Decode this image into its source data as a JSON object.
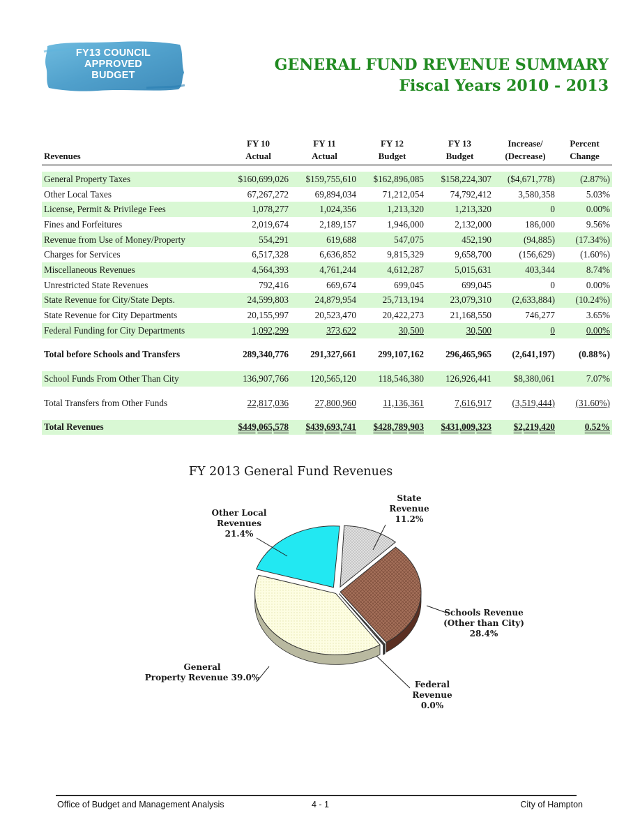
{
  "badge": {
    "line1": "FY13 COUNCIL",
    "line2": "APPROVED",
    "line3": "BUDGET"
  },
  "title": {
    "line1": "GENERAL FUND REVENUE SUMMARY",
    "line2": "Fiscal Years 2010 - 2013"
  },
  "colors": {
    "title_green": "#218a21",
    "row_green": "#d9f8d4",
    "badge_blue": "#3d96c6"
  },
  "table": {
    "header_top": [
      "FY 10",
      "FY 11",
      "FY 12",
      "FY 13",
      "Increase/",
      "Percent"
    ],
    "header_bottom": [
      "Actual",
      "Actual",
      "Budget",
      "Budget",
      "(Decrease)",
      "Change"
    ],
    "label_header": "Revenues",
    "rows": [
      {
        "label": "General Property Taxes",
        "fy10": "$160,699,026",
        "fy11": "$159,755,610",
        "fy12": "$162,896,085",
        "fy13": "$158,224,307",
        "change": "($4,671,778)",
        "pct": "(2.87%)"
      },
      {
        "label": "Other Local Taxes",
        "fy10": "67,267,272",
        "fy11": "69,894,034",
        "fy12": "71,212,054",
        "fy13": "74,792,412",
        "change": "3,580,358",
        "pct": "5.03%"
      },
      {
        "label": "License, Permit & Privilege Fees",
        "fy10": "1,078,277",
        "fy11": "1,024,356",
        "fy12": "1,213,320",
        "fy13": "1,213,320",
        "change": "0",
        "pct": "0.00%"
      },
      {
        "label": "Fines and Forfeitures",
        "fy10": "2,019,674",
        "fy11": "2,189,157",
        "fy12": "1,946,000",
        "fy13": "2,132,000",
        "change": "186,000",
        "pct": "9.56%"
      },
      {
        "label": "Revenue from Use of Money/Property",
        "fy10": "554,291",
        "fy11": "619,688",
        "fy12": "547,075",
        "fy13": "452,190",
        "change": "(94,885)",
        "pct": "(17.34%)"
      },
      {
        "label": "Charges for Services",
        "fy10": "6,517,328",
        "fy11": "6,636,852",
        "fy12": "9,815,329",
        "fy13": "9,658,700",
        "change": "(156,629)",
        "pct": "(1.60%)"
      },
      {
        "label": "Miscellaneous Revenues",
        "fy10": "4,564,393",
        "fy11": "4,761,244",
        "fy12": "4,612,287",
        "fy13": "5,015,631",
        "change": "403,344",
        "pct": "8.74%"
      },
      {
        "label": "Unrestricted State Revenues",
        "fy10": "792,416",
        "fy11": "669,674",
        "fy12": "699,045",
        "fy13": "699,045",
        "change": "0",
        "pct": "0.00%"
      },
      {
        "label": "State Revenue for City/State Depts.",
        "fy10": "24,599,803",
        "fy11": "24,879,954",
        "fy12": "25,713,194",
        "fy13": "23,079,310",
        "change": "(2,633,884)",
        "pct": "(10.24%)"
      },
      {
        "label": "State Revenue for City Departments",
        "fy10": "20,155,997",
        "fy11": "20,523,470",
        "fy12": "20,422,273",
        "fy13": "21,168,550",
        "change": "746,277",
        "pct": "3.65%"
      },
      {
        "label": "Federal Funding for City Departments",
        "fy10": "1,092,299",
        "fy11": "373,622",
        "fy12": "30,500",
        "fy13": "30,500",
        "change": "0",
        "pct": "0.00%"
      }
    ],
    "total_before": {
      "label": "Total before Schools and Transfers",
      "fy10": "289,340,776",
      "fy11": "291,327,661",
      "fy12": "299,107,162",
      "fy13": "296,465,965",
      "change": "(2,641,197)",
      "pct": "(0.88%)"
    },
    "school_funds": {
      "label": "School Funds From Other Than City",
      "fy10": "136,907,766",
      "fy11": "120,565,120",
      "fy12": "118,546,380",
      "fy13": "126,926,441",
      "change": "$8,380,061",
      "pct": "7.07%"
    },
    "transfers": {
      "label": "Total Transfers from Other Funds",
      "fy10": "22,817,036",
      "fy11": "27,800,960",
      "fy12": "11,136,361",
      "fy13": "7,616,917",
      "change": "(3,519,444)",
      "pct": "(31.60%)"
    },
    "total": {
      "label": "Total Revenues",
      "fy10": "$449,065,578",
      "fy11": "$439,693,741",
      "fy12": "$428,789,903",
      "fy13": "$431,009,323",
      "change": "$2,219,420",
      "pct": "0.52%"
    }
  },
  "chart_data": {
    "type": "pie",
    "title": "FY 2013  General Fund Revenues",
    "slices": [
      {
        "name": "State Revenue",
        "value": 11.2,
        "color": "#d4d4d4",
        "label_lines": [
          "State",
          "Revenue",
          "11.2%"
        ]
      },
      {
        "name": "Schools Revenue (Other than City)",
        "value": 28.4,
        "color": "#9b6a56",
        "label_lines": [
          "Schools Revenue",
          "(Other than City)",
          "28.4%"
        ]
      },
      {
        "name": "Federal Revenue",
        "value": 0.0,
        "color": "#404040",
        "label_lines": [
          "Federal",
          "Revenue",
          "0.0%"
        ]
      },
      {
        "name": "General Property Revenue",
        "value": 39.0,
        "color": "#fbfbd9",
        "label_lines": [
          "General",
          "Property Revenue 39.0%"
        ]
      },
      {
        "name": "Other Local Revenues",
        "value": 21.4,
        "color": "#22e8f2",
        "label_lines": [
          "Other Local",
          "Revenues",
          "21.4%"
        ]
      }
    ]
  },
  "footer": {
    "left": "Office of Budget and Management Analysis",
    "center": "4 - 1",
    "right": "City of Hampton"
  }
}
